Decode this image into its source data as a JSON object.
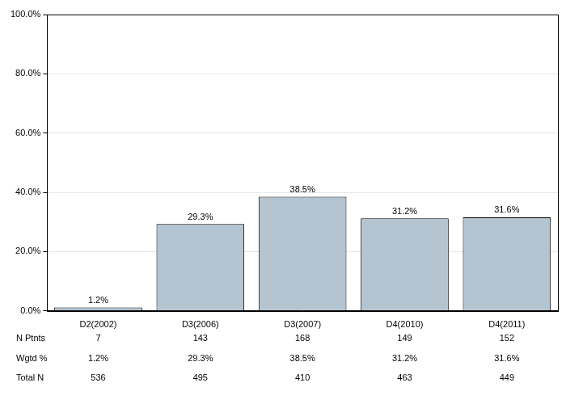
{
  "chart_data": {
    "type": "bar",
    "categories": [
      "D2(2002)",
      "D3(2006)",
      "D3(2007)",
      "D4(2010)",
      "D4(2011)"
    ],
    "values": [
      1.2,
      29.3,
      38.5,
      31.2,
      31.6
    ],
    "value_labels": [
      "1.2%",
      "29.3%",
      "38.5%",
      "31.2%",
      "31.6%"
    ],
    "data_labels": true,
    "color": "#b4c4d0",
    "ylim": [
      0,
      100
    ],
    "yticks": [
      {
        "value": 0,
        "label": "0.0%"
      },
      {
        "value": 20,
        "label": "20.0%"
      },
      {
        "value": 40,
        "label": "40.0%"
      },
      {
        "value": 60,
        "label": "60.0%"
      },
      {
        "value": 80,
        "label": "80.0%"
      },
      {
        "value": 100,
        "label": "100.0%"
      }
    ],
    "grid": true,
    "table": {
      "rows": [
        {
          "label": "N Ptnts",
          "cells": [
            "7",
            "143",
            "168",
            "149",
            "152"
          ]
        },
        {
          "label": "Wgtd %",
          "cells": [
            "1.2%",
            "29.3%",
            "38.5%",
            "31.2%",
            "31.6%"
          ]
        },
        {
          "label": "Total N",
          "cells": [
            "536",
            "495",
            "410",
            "463",
            "449"
          ]
        }
      ]
    }
  }
}
